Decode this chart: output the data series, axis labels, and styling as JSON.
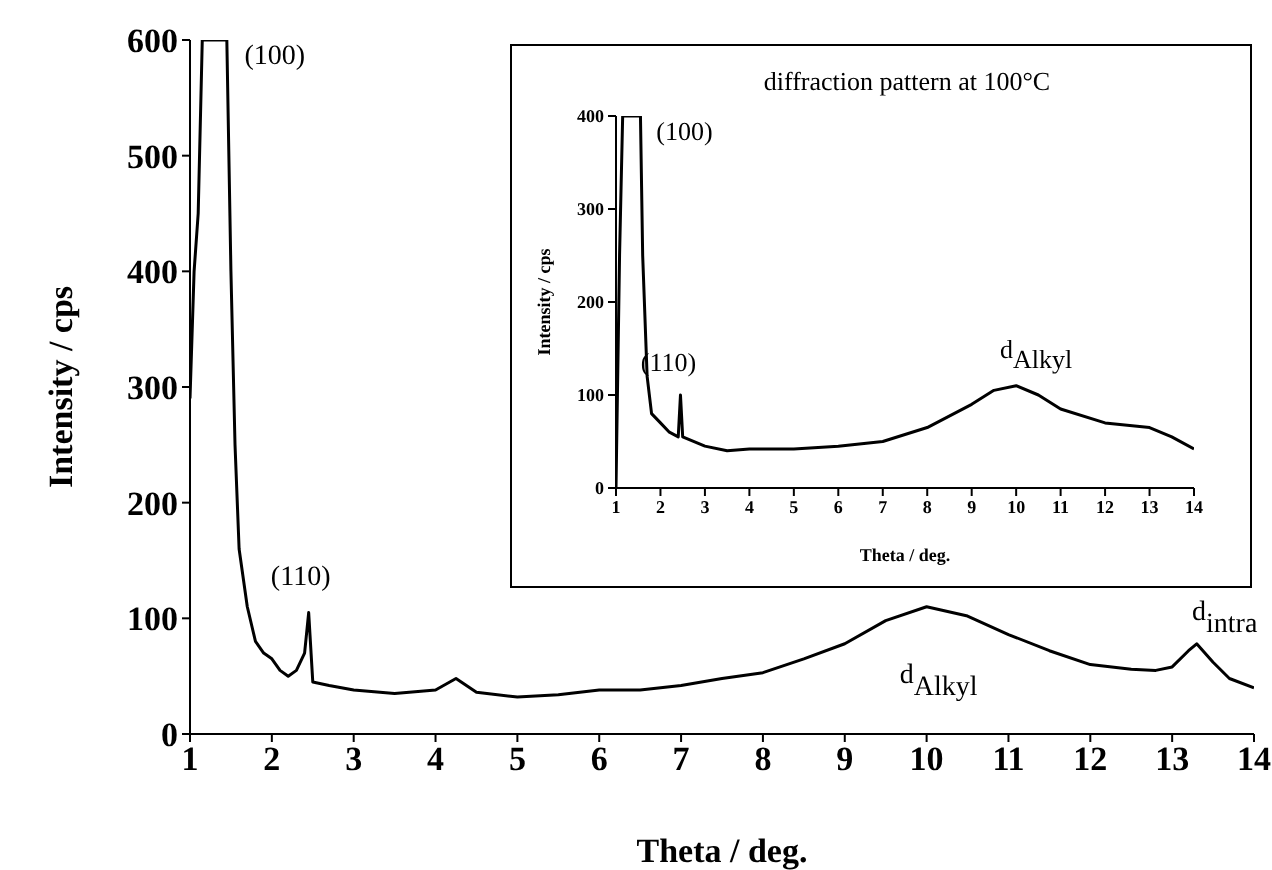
{
  "chart_data": [
    {
      "type": "line",
      "xlabel": "Theta / deg.",
      "ylabel": "Intensity / cps",
      "xlim": [
        1,
        14
      ],
      "ylim": [
        0,
        600
      ],
      "xticks": [
        1,
        2,
        3,
        4,
        5,
        6,
        7,
        8,
        9,
        10,
        11,
        12,
        13,
        14
      ],
      "yticks": [
        0,
        100,
        200,
        300,
        400,
        500,
        600
      ],
      "grid": false,
      "marker": "none",
      "line_style": "solid",
      "series": [
        {
          "color": "#000000",
          "x": [
            1.0,
            1.05,
            1.1,
            1.15,
            1.45,
            1.5,
            1.55,
            1.6,
            1.7,
            1.8,
            1.9,
            2.0,
            2.1,
            2.2,
            2.3,
            2.4,
            2.45,
            2.5,
            2.7,
            3.0,
            3.5,
            4.0,
            4.25,
            4.5,
            5.0,
            5.5,
            6.0,
            6.5,
            7.0,
            7.5,
            8.0,
            8.5,
            9.0,
            9.5,
            10.0,
            10.5,
            11.0,
            11.5,
            12.0,
            12.5,
            12.8,
            13.0,
            13.2,
            13.3,
            13.5,
            13.7,
            14.0
          ],
          "values": [
            290,
            400,
            450,
            600,
            600,
            400,
            250,
            160,
            110,
            80,
            70,
            65,
            55,
            50,
            55,
            70,
            105,
            45,
            42,
            38,
            35,
            38,
            48,
            36,
            32,
            34,
            38,
            38,
            42,
            48,
            53,
            65,
            78,
            98,
            110,
            102,
            86,
            72,
            60,
            56,
            55,
            58,
            72,
            78,
            62,
            48,
            40
          ]
        }
      ],
      "annotations": [
        {
          "text": "(100)",
          "x": 1.45,
          "y": 600
        },
        {
          "text": "(110)",
          "x": 2.45,
          "y": 105
        },
        {
          "text": "d$_{Alkyl}$",
          "x": 10.0,
          "y": 110
        },
        {
          "text": "d$_{intra}$",
          "x": 13.3,
          "y": 78
        }
      ]
    },
    {
      "type": "line",
      "title": "diffraction pattern at 100°C",
      "xlabel": "Theta / deg.",
      "ylabel": "Intensity / cps",
      "xlim": [
        1,
        14
      ],
      "ylim": [
        0,
        400
      ],
      "xticks": [
        1,
        2,
        3,
        4,
        5,
        6,
        7,
        8,
        9,
        10,
        11,
        12,
        13,
        14
      ],
      "yticks": [
        0,
        100,
        200,
        300,
        400
      ],
      "grid": false,
      "marker": "none",
      "line_style": "solid",
      "series": [
        {
          "color": "#000000",
          "x": [
            1.0,
            1.08,
            1.15,
            1.55,
            1.6,
            1.7,
            1.8,
            2.0,
            2.2,
            2.4,
            2.45,
            2.5,
            3.0,
            3.5,
            4.0,
            5.0,
            6.0,
            7.0,
            8.0,
            9.0,
            9.5,
            10.0,
            10.5,
            11.0,
            12.0,
            13.0,
            13.5,
            14.0
          ],
          "values": [
            0,
            250,
            400,
            400,
            250,
            120,
            80,
            70,
            60,
            55,
            100,
            55,
            45,
            40,
            42,
            42,
            45,
            50,
            65,
            90,
            105,
            110,
            100,
            85,
            70,
            65,
            55,
            42
          ]
        }
      ],
      "annotations": [
        {
          "text": "(100)",
          "x": 1.55,
          "y": 400
        },
        {
          "text": "(110)",
          "x": 2.45,
          "y": 100
        },
        {
          "text": "d$_{Alkyl}$",
          "x": 10.0,
          "y": 110
        }
      ]
    }
  ]
}
